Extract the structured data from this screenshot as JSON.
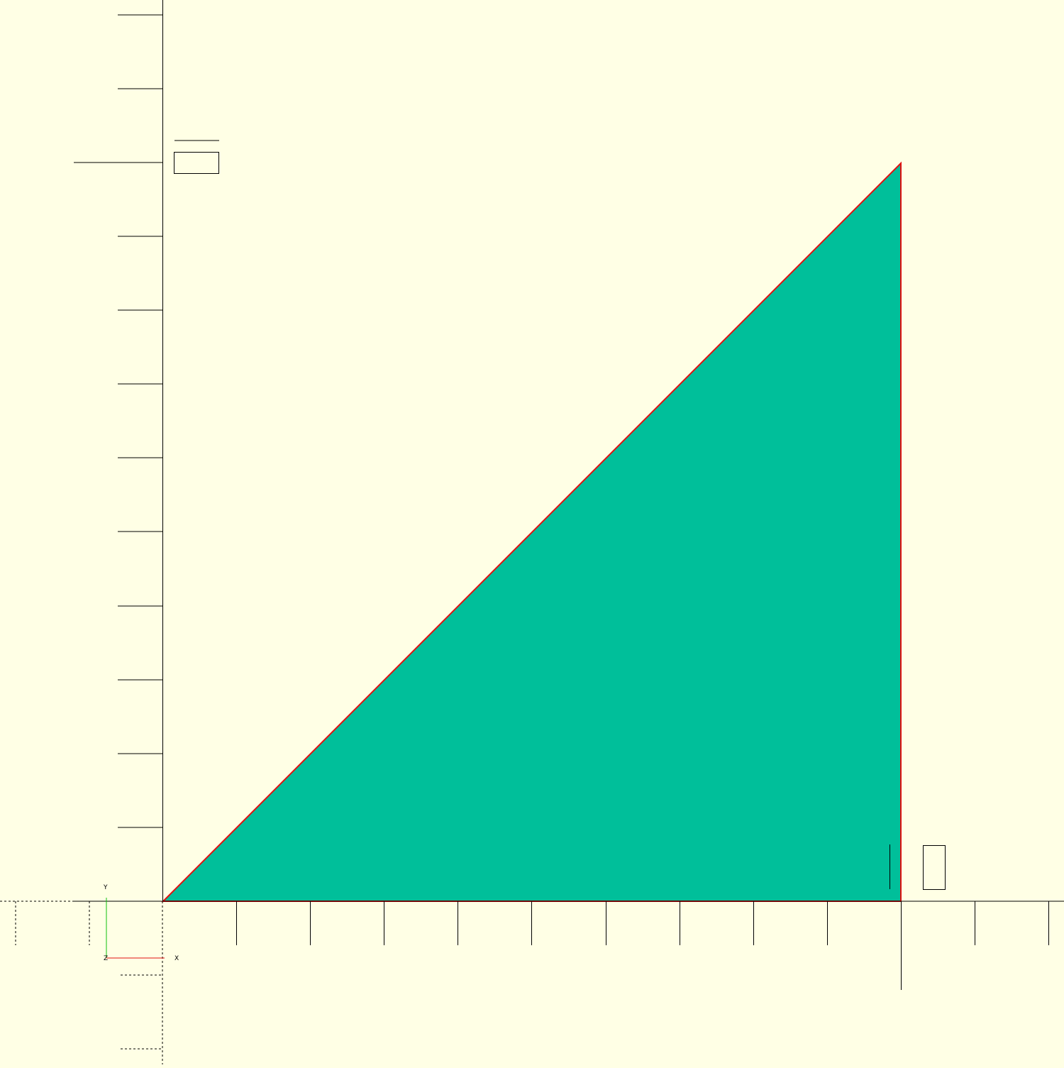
{
  "viewport": {
    "background_color": "#ffffe5",
    "shape_fill_color": "#00bf9a",
    "shape_edge_color": "#e01010",
    "axis_color": "#000000"
  },
  "axes_gizmo": {
    "x_label": "X",
    "y_label": "Y",
    "z_label": "Z",
    "x_color": "#e01010",
    "y_color": "#10c010"
  },
  "shape": {
    "type": "right-triangle",
    "vertices": [
      [
        0,
        0
      ],
      [
        10,
        0
      ],
      [
        10,
        10
      ]
    ]
  }
}
